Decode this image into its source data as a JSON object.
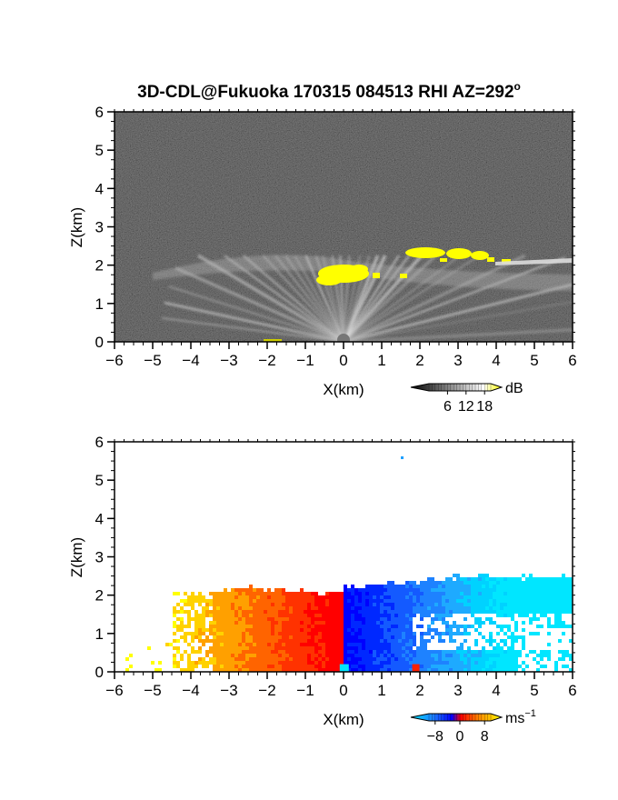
{
  "title": "3D-CDL@Fukuoka 170315 084513 RHI AZ=292",
  "title_degree": "o",
  "chart_data": [
    {
      "type": "heatmap",
      "variable": "backscatter intensity",
      "xlabel": "X(km)",
      "ylabel": "Z(km)",
      "xlim": [
        -6,
        6
      ],
      "ylim": [
        0,
        6
      ],
      "xticks": [
        -6,
        -5,
        -4,
        -3,
        -2,
        -1,
        0,
        1,
        2,
        3,
        4,
        5,
        6
      ],
      "yticks": [
        0,
        1,
        2,
        3,
        4,
        5,
        6
      ],
      "colorbar": {
        "unit": "dB",
        "ticks": [
          6,
          12,
          18
        ],
        "range": [
          0,
          20
        ],
        "colors": [
          "#000000",
          "#ffffff",
          "#ffff00"
        ]
      },
      "features": [
        {
          "name": "fan of bright rays from radar at origin",
          "x_range": [
            -4.5,
            6
          ],
          "z_range": [
            0,
            2.2
          ]
        },
        {
          "name": "bright cloud patch",
          "x_range": [
            -0.8,
            1.1
          ],
          "z_range": [
            1.5,
            2.0
          ],
          "level": "saturated"
        },
        {
          "name": "bright layer",
          "x_range": [
            1.5,
            4.3
          ],
          "z_range": [
            2.0,
            2.5
          ],
          "level": "saturated"
        }
      ]
    },
    {
      "type": "heatmap",
      "variable": "radial velocity",
      "xlabel": "X(km)",
      "ylabel": "Z(km)",
      "xlim": [
        -6,
        6
      ],
      "ylim": [
        0,
        6
      ],
      "xticks": [
        -6,
        -5,
        -4,
        -3,
        -2,
        -1,
        0,
        1,
        2,
        3,
        4,
        5,
        6
      ],
      "yticks": [
        0,
        1,
        2,
        3,
        4,
        5,
        6
      ],
      "colorbar": {
        "unit": "ms",
        "unit_exp": "−1",
        "ticks": [
          "−8",
          "0",
          "8"
        ],
        "range": [
          -10,
          10
        ]
      },
      "features": [
        {
          "name": "positive velocities (warm colors)",
          "x_range": [
            -5.8,
            0
          ],
          "z_range": [
            0,
            2.2
          ]
        },
        {
          "name": "negative velocities (cool colors)",
          "x_range": [
            0,
            6
          ],
          "z_range": [
            0,
            2.5
          ]
        }
      ]
    }
  ]
}
